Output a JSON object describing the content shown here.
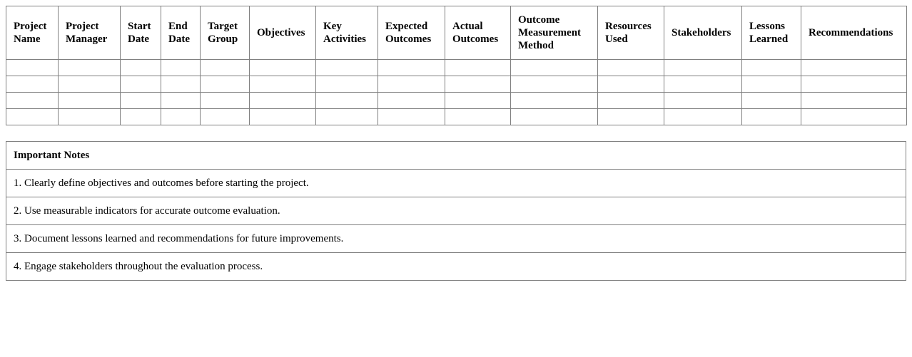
{
  "evaluation_table": {
    "headers": [
      "Project Name",
      "Project Manager",
      "Start Date",
      "End Date",
      "Target Group",
      "Objectives",
      "Key Activities",
      "Expected Outcomes",
      "Actual Outcomes",
      "Outcome Measurement Method",
      "Resources Used",
      "Stakeholders",
      "Lessons Learned",
      "Recommendations"
    ],
    "rows": [
      [
        "",
        "",
        "",
        "",
        "",
        "",
        "",
        "",
        "",
        "",
        "",
        "",
        "",
        ""
      ],
      [
        "",
        "",
        "",
        "",
        "",
        "",
        "",
        "",
        "",
        "",
        "",
        "",
        "",
        ""
      ],
      [
        "",
        "",
        "",
        "",
        "",
        "",
        "",
        "",
        "",
        "",
        "",
        "",
        "",
        ""
      ],
      [
        "",
        "",
        "",
        "",
        "",
        "",
        "",
        "",
        "",
        "",
        "",
        "",
        "",
        ""
      ]
    ]
  },
  "notes": {
    "title": "Important Notes",
    "items": [
      "1. Clearly define objectives and outcomes before starting the project.",
      "2. Use measurable indicators for accurate outcome evaluation.",
      "3. Document lessons learned and recommendations for future improvements.",
      "4. Engage stakeholders throughout the evaluation process."
    ]
  }
}
